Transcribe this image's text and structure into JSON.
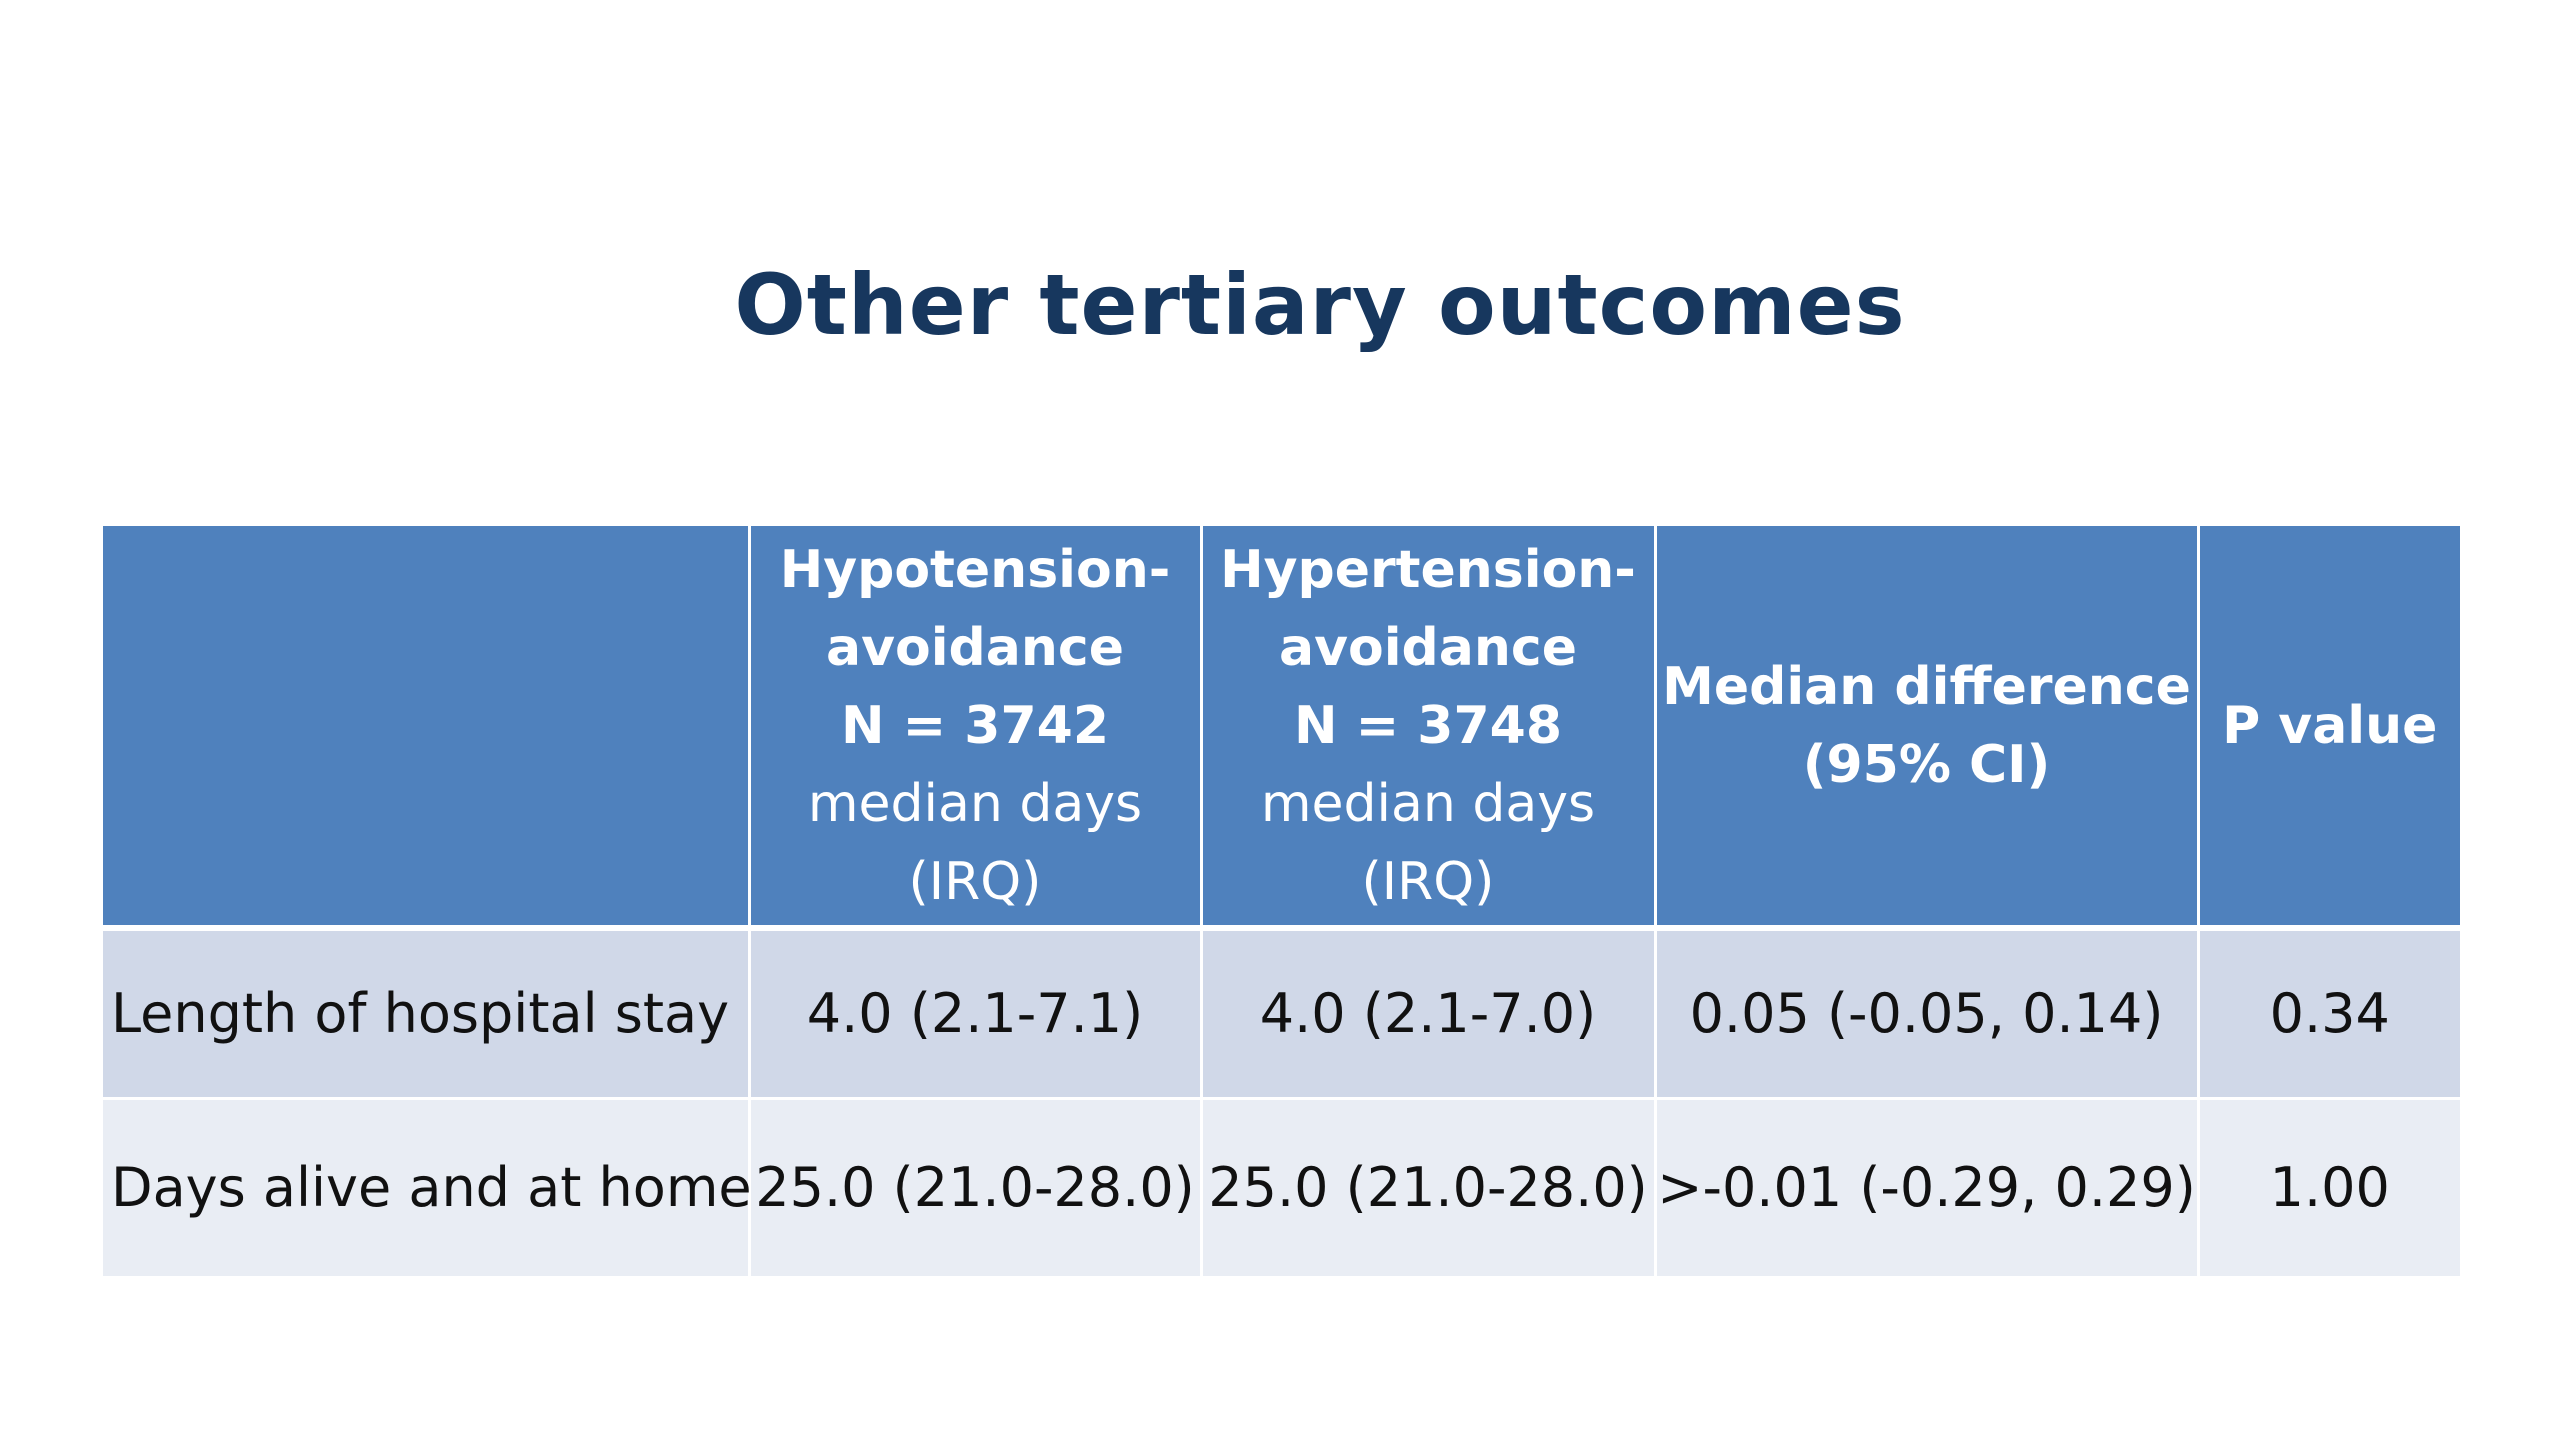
{
  "slide": {
    "title": "Other tertiary outcomes"
  },
  "table": {
    "headers": [
      {
        "lines": []
      },
      {
        "bold_lines": [
          "Hypotension-",
          "avoidance",
          "N = 3742"
        ],
        "normal_lines": [
          "median days",
          "(IRQ)"
        ]
      },
      {
        "bold_lines": [
          "Hypertension-",
          "avoidance",
          "N = 3748"
        ],
        "normal_lines": [
          "median days",
          "(IRQ)"
        ]
      },
      {
        "bold_lines": [
          "Median difference",
          "(95% CI)"
        ],
        "normal_lines": []
      },
      {
        "bold_lines": [
          "P value"
        ],
        "normal_lines": []
      }
    ],
    "rows": [
      {
        "label": "Length of hospital stay",
        "cells": [
          "4.0 (2.1-7.1)",
          "4.0 (2.1-7.0)",
          "0.05 (-0.05, 0.14)",
          "0.34"
        ]
      },
      {
        "label": "Days alive and at home",
        "cells": [
          "25.0 (21.0-28.0)",
          "25.0 (21.0-28.0)",
          ">-0.01 (-0.29, 0.29)",
          "1.00"
        ]
      }
    ]
  },
  "colors": {
    "title": "#17375e",
    "header_fill": "#4f81bd",
    "row_odd_fill": "#d0d8e8",
    "row_even_fill": "#e9edf4"
  }
}
